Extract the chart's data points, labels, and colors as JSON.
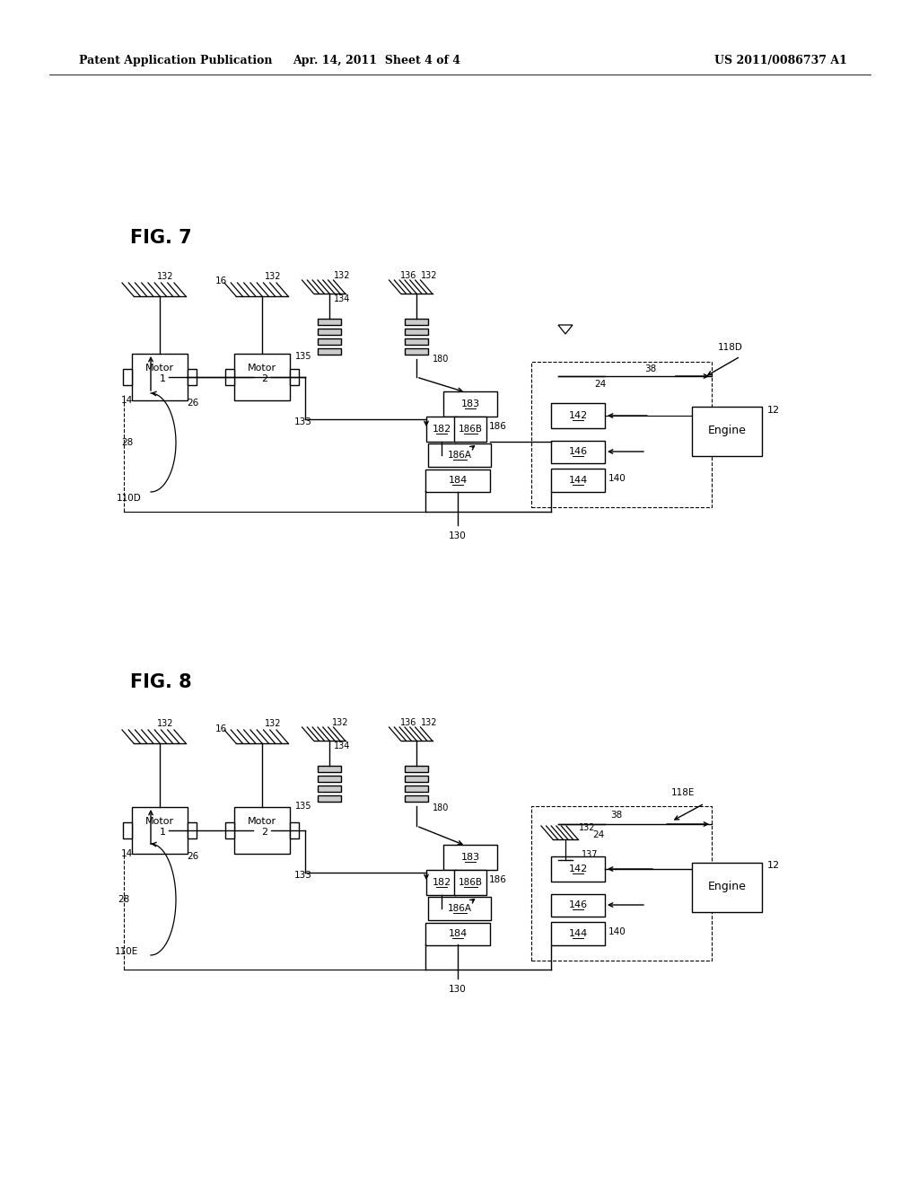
{
  "bg_color": "#ffffff",
  "header_left": "Patent Application Publication",
  "header_center": "Apr. 14, 2011  Sheet 4 of 4",
  "header_right": "US 2011/0086737 A1"
}
